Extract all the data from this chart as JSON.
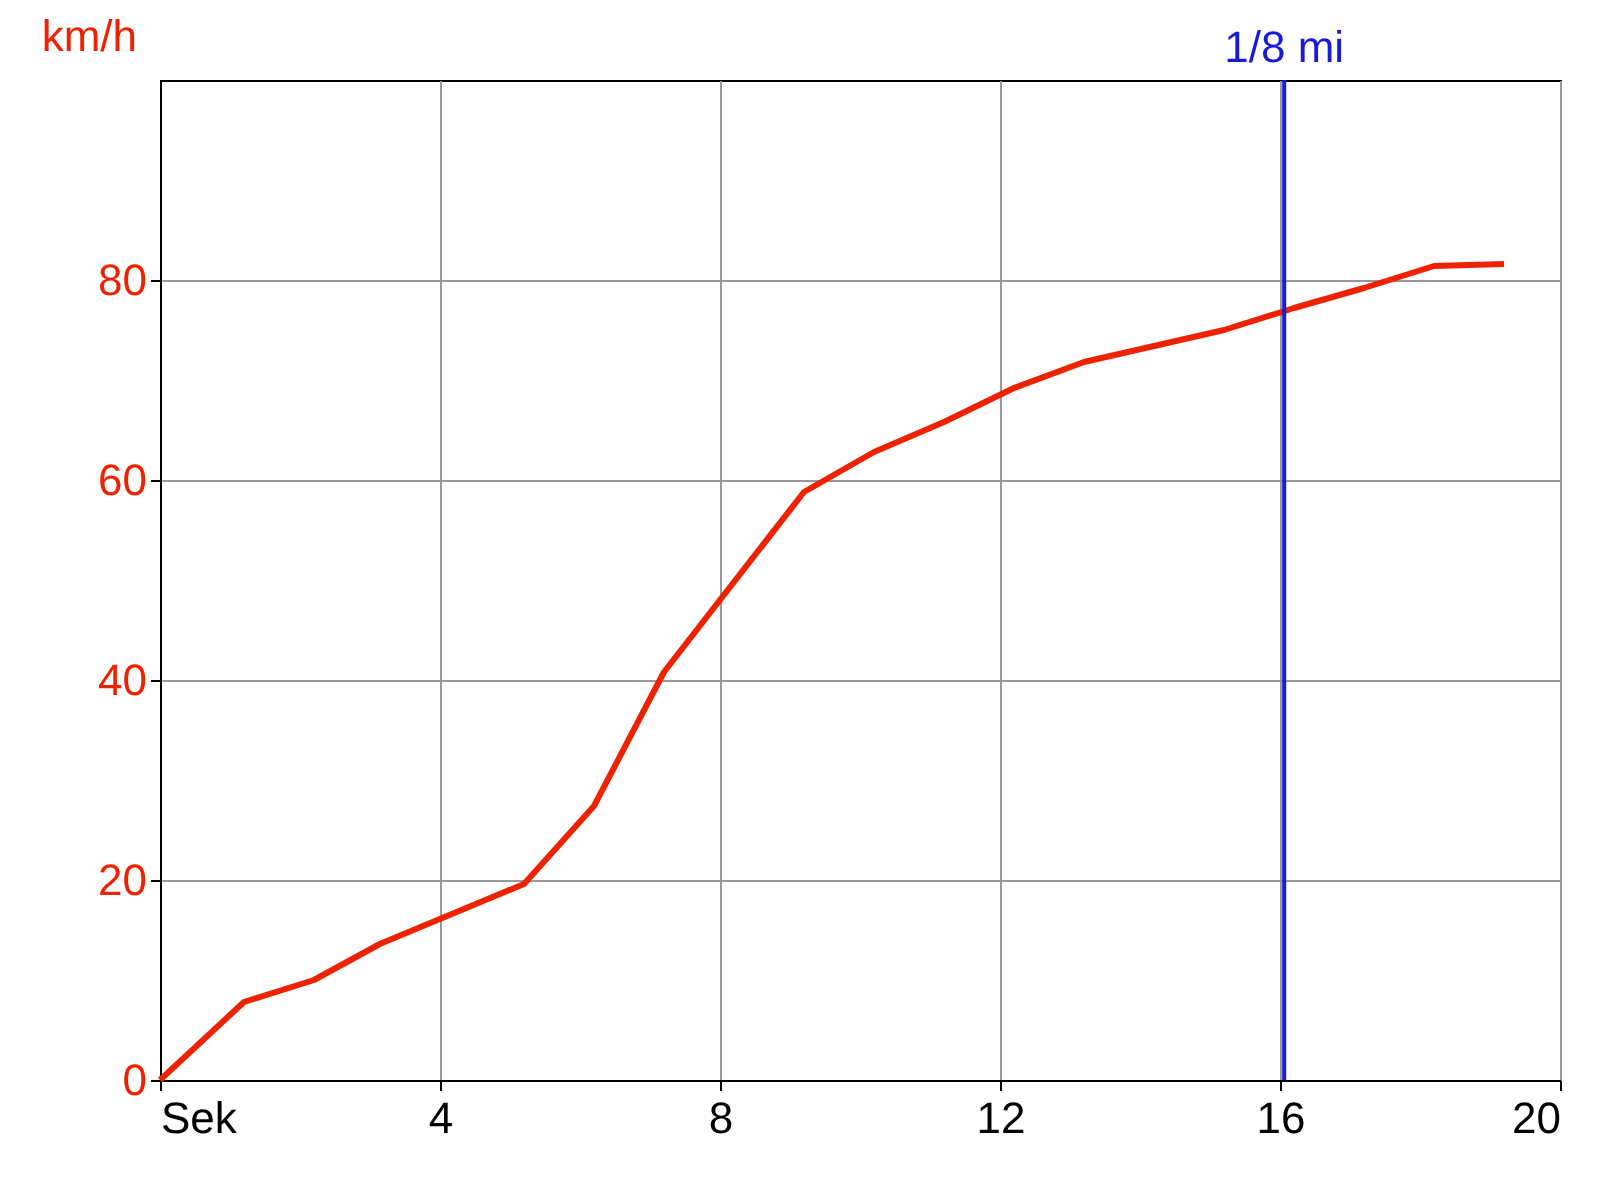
{
  "chart_data": {
    "type": "line",
    "ylabel": "km/h",
    "x": [
      0,
      1.2,
      2.2,
      3.14,
      5.2,
      6.2,
      7.2,
      9.2,
      10.2,
      11.2,
      12.2,
      13.2,
      15.2,
      16.2,
      17.2,
      18.2,
      19.2
    ],
    "series": [
      {
        "color": "#ee2200",
        "values": [
          0,
          7.8,
          10,
          13.6,
          19.6,
          27.4,
          40.8,
          58.8,
          62.8,
          65.8,
          69.2,
          71.8,
          75,
          77.2,
          79.2,
          81.4,
          81.6
        ]
      }
    ],
    "xlim": [
      0,
      20
    ],
    "xticks": [
      {
        "value": 0,
        "label": "Sek"
      },
      4,
      8,
      12,
      16,
      20
    ],
    "ylim": [
      0,
      100
    ],
    "yticks": [
      0,
      20,
      40,
      60,
      80
    ],
    "ref_lines": [
      {
        "axis": "x",
        "value": 16.06,
        "label": "1/8 mi",
        "color": "#1a1ad8"
      }
    ],
    "grid": true,
    "marker": "none",
    "line_style": "solid"
  }
}
